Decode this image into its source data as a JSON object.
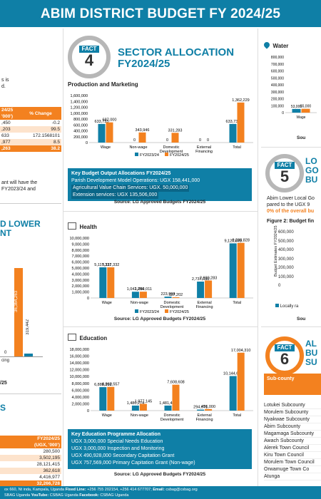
{
  "banner": {
    "title": "ABIM DISTRICT BUDGET FY 2024/25"
  },
  "left": {
    "p1": [
      "s is",
      "d."
    ],
    "table1_head": [
      "24/25",
      "'000')",
      "% Change"
    ],
    "table1_rows": [
      [
        ",450",
        "-0.2"
      ],
      [
        ",203",
        "99.5"
      ],
      [
        "633",
        "172.1568101"
      ],
      [
        ",977",
        "8.5"
      ],
      [
        ",263",
        "38.2"
      ]
    ],
    "p2": [
      "ant will have the",
      "FY2023/24 and"
    ],
    "section": [
      "D LOWER",
      "NT"
    ],
    "bar_value": "36,364,263",
    "bar_value2": "319,442",
    "bar_zero": "0",
    "axis_lbls": [
      "cing"
    ],
    "year": "/25",
    "sec2": "S",
    "table2_head": [
      "FY2024/25",
      "(UGX, '000')"
    ],
    "table2_rows": [
      "280,500",
      "3,502,195",
      "28,121,415",
      "362,618",
      "4,416,977",
      "32,266,728"
    ]
  },
  "fact4": {
    "label": "FACT",
    "number": "4",
    "title_line1": "SECTOR ALLOCATION",
    "title_line2": "FY2024/25"
  },
  "production": {
    "title": "Production and Marketing",
    "box_heading": "Key Budget Output Allocations FY2024/25",
    "box_lines": [
      "Parish Development Model Operations: UGX 158,441,000",
      "Agricultural Value Chain Services: UGX. 50,000,000",
      "Extension services: UGX 135,506,000"
    ],
    "source": "Source: LG Approved Budgets FY2024/25"
  },
  "health": {
    "title": "Health",
    "source": "Source: LG Approved Budgets FY2024/25"
  },
  "education": {
    "title": "Education",
    "box_heading": "Key Education Programme Allocation",
    "box_lines": [
      "UGX 3,000,000 Special Needs Education",
      "UGX 3,000,000 Inspection and Monitoring",
      "UGX 490,928,000 Secondary Capitation Grant",
      "UGX 757,569,000 Primary Capitation Grant (Non-wage)"
    ],
    "source": "Source: LG Approved Budgets FY2024/25"
  },
  "right": {
    "water_title": "Water",
    "water_vals": [
      "53,000",
      "55,000"
    ],
    "water_cat": "Wage",
    "water_src": "Sou",
    "fact5": {
      "label": "FACT",
      "number": "5",
      "title": [
        "LO",
        "GO",
        "BU"
      ]
    },
    "fact5_text": [
      "Abim Lower Local Go",
      "pared to the UGX 9",
      "0% of the overall bu"
    ],
    "fig2": "Figure 2: Budget fin",
    "fig2_ylabel": "Budget Estimates FY2024/25",
    "fig2_legend": "Locally ra",
    "fig2_src": "Sou",
    "fact6": {
      "label": "FACT",
      "number": "6",
      "title": [
        "AL",
        "BU",
        "SU"
      ]
    },
    "subcounty_head": "Sub-county",
    "subcounties": [
      "Lotukei Subcounty",
      "Morulem Subcounty",
      "Nyakwae Subcounty",
      "Abim Subcounty",
      "Magamaga Subcounty",
      "Awach Subcounty",
      "Alerek Town Council",
      "Kiru Town Council",
      "Morulem Town Council",
      "Orwamuge Town Co",
      "Atunga"
    ]
  },
  "footer": {
    "line1a": "ox 660, Nt inda, Kampala, Uganda",
    "line1b": "Fixed Line:",
    "line1c": "+256 755 202154, +256 414 677707;",
    "line1d": "Email:",
    "line1e": "csbag@csbag.org",
    "line2a": "SBAG Uganda",
    "line2b": "YouTube:",
    "line2c": "CSBAG Uganda",
    "line2d": "Facebook:",
    "line2e": "CSBAG Uganda"
  },
  "chart_data": [
    {
      "type": "bar",
      "title": "Production and Marketing",
      "categories": [
        "Wage",
        "Non-wage",
        "Domestic Development",
        "External Financing",
        "Total"
      ],
      "series": [
        {
          "name": "FY2023/24",
          "values": [
            633733,
            0,
            0,
            0,
            633733
          ]
        },
        {
          "name": "FY2024/25",
          "values": [
            687000,
            343946,
            331283,
            0,
            1362229
          ]
        }
      ],
      "ylim": [
        0,
        1600000
      ],
      "yticks": [
        "0",
        "200,000",
        "400,000",
        "600,000",
        "800,000",
        "1,000,000",
        "1,200,000",
        "1,400,000",
        "1,600,000"
      ]
    },
    {
      "type": "bar",
      "title": "Health",
      "categories": [
        "Wage",
        "Non-wage",
        "Domestic Development",
        "External Financing",
        "Total"
      ],
      "series": [
        {
          "name": "FY2023/24",
          "values": [
            5117331,
            1042290,
            223998,
            2737030,
            9120649
          ]
        },
        {
          "name": "FY2024/25",
          "values": [
            5117332,
            1054011,
            117202,
            2920283,
            9208828
          ]
        }
      ],
      "ylim": [
        0,
        10000000
      ],
      "yticks": [
        "0",
        "1,000,000",
        "2,000,000",
        "3,000,000",
        "4,000,000",
        "5,000,000",
        "6,000,000",
        "7,000,000",
        "8,000,000",
        "9,000,000",
        "10,000,000"
      ]
    },
    {
      "type": "bar",
      "title": "Education",
      "categories": [
        "Wage",
        "Non-wage",
        "Domestic Development",
        "External Financing",
        "Total"
      ],
      "series": [
        {
          "name": "FY2023/24",
          "values": [
            6888219,
            1480274,
            1481468,
            294671,
            10144632
          ]
        },
        {
          "name": "FY2024/25",
          "values": [
            6962557,
            1977145,
            7608608,
            456000,
            17004310
          ]
        }
      ],
      "ylim": [
        0,
        18000000
      ],
      "yticks": [
        "0",
        "2,000,000",
        "4,000,000",
        "6,000,000",
        "8,000,000",
        "10,000,000",
        "12,000,000",
        "14,000,000",
        "16,000,000",
        "18,000,000"
      ]
    },
    {
      "type": "bar",
      "title": "Water",
      "categories": [
        "Wage"
      ],
      "series": [
        {
          "values": [
            53000
          ]
        },
        {
          "values": [
            55000
          ]
        }
      ],
      "ylim": [
        0,
        800000
      ],
      "yticks": [
        "0",
        "100,000",
        "200,000",
        "300,000",
        "400,000",
        "500,000",
        "600,000",
        "700,000",
        "800,000"
      ]
    }
  ],
  "colors": {
    "blue": "#0f7fa6",
    "orange": "#f3811f",
    "grey": "#b7b7b7"
  }
}
